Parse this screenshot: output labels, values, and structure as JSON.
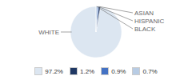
{
  "chart_data": {
    "type": "pie",
    "categories": [
      "WHITE",
      "ASIAN",
      "HISPANIC",
      "BLACK"
    ],
    "values": [
      97.2,
      1.2,
      0.9,
      0.7
    ],
    "value_labels": [
      "97.2%",
      "1.2%",
      "0.9%",
      "0.7%"
    ],
    "colors": [
      "#dce6f1",
      "#1f3864",
      "#4472c4",
      "#b8cce4"
    ],
    "legend": "bottom"
  }
}
